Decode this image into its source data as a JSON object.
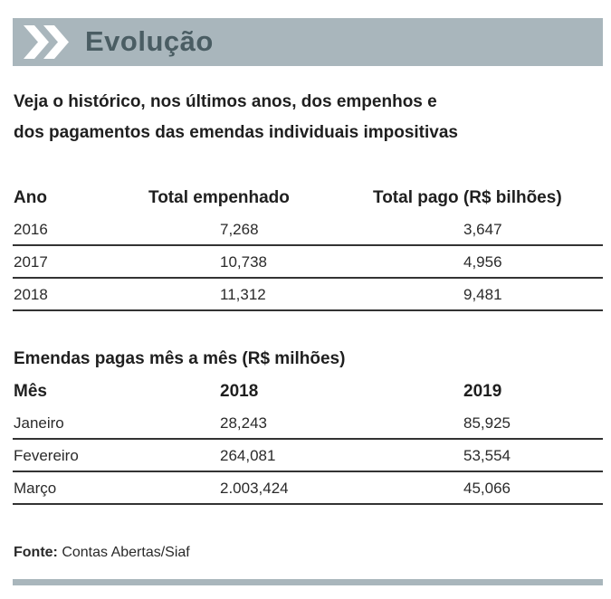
{
  "header": {
    "title": "Evolução",
    "bar_color": "#a9b6bc",
    "title_color": "#4a5d63",
    "icon": "double-chevron-right-icon"
  },
  "subtitle": {
    "line1": "Veja o histórico, nos últimos anos, dos empenhos e",
    "line2": "dos pagamentos das emendas individuais impositivas"
  },
  "annual_table": {
    "headers": [
      "Ano",
      "Total empenhado",
      "Total pago (R$ bilhões)"
    ],
    "rows": [
      [
        "2016",
        "7,268",
        "3,647"
      ],
      [
        "2017",
        "10,738",
        "4,956"
      ],
      [
        "2018",
        "11,312",
        "9,481"
      ]
    ]
  },
  "monthly_section": {
    "title": "Emendas pagas mês a mês (R$ milhões)"
  },
  "monthly_table": {
    "headers": [
      "Mês",
      "2018",
      "2019"
    ],
    "rows": [
      [
        "Janeiro",
        "28,243",
        "85,925"
      ],
      [
        "Fevereiro",
        "264,081",
        "53,554"
      ],
      [
        "Março",
        "2.003,424",
        "45,066"
      ]
    ]
  },
  "source": {
    "label": "Fonte:",
    "text": "Contas Abertas/Siaf"
  }
}
